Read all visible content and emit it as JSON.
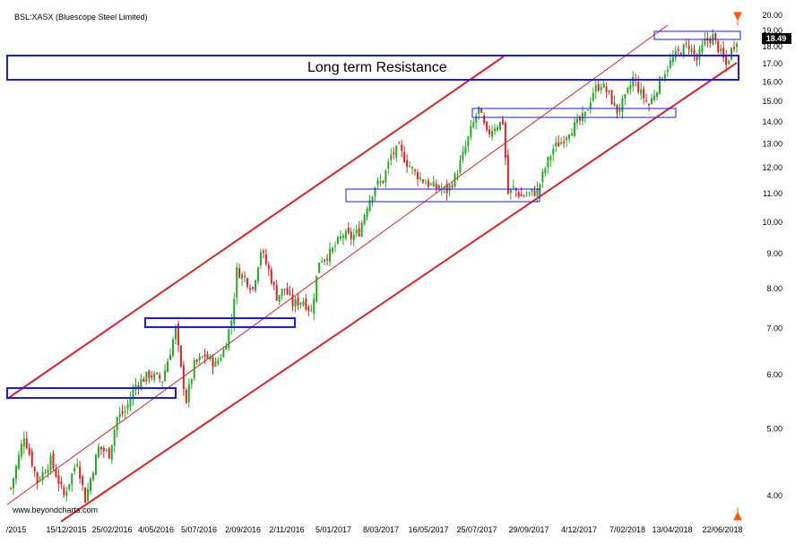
{
  "chart_data": {
    "type": "candlestick",
    "title": "BSL:XASX (Bluescope Steel Limited)",
    "y_scale": "log",
    "ylim": [
      3.7,
      20.0
    ],
    "y_ticks": [
      "20.00",
      "19.00",
      "18.00",
      "17.00",
      "16.00",
      "15.00",
      "14.00",
      "13.00",
      "12.00",
      "11.00",
      "10.00",
      "9.00",
      "8.00",
      "7.00",
      "6.00",
      "5.00",
      "4.00"
    ],
    "x_tick_labels": [
      "/2015",
      "15/12/2015",
      "25/02/2016",
      "4/05/2016",
      "5/07/2016",
      "2/09/2016",
      "2/11/2016",
      "5/01/2017",
      "8/03/2017",
      "16/05/2017",
      "25/07/2017",
      "29/09/2017",
      "4/12/2017",
      "7/02/2018",
      "13/04/2018",
      "22/06/2018"
    ],
    "last_price": "18.49",
    "annotation": "Long term Resistance",
    "watermark": "www.beyondcharts.com",
    "colors": {
      "up": "#22aa22",
      "down": "#dd2222",
      "channel": "#e02020",
      "box": "#1a1aee"
    },
    "price_path": [
      [
        0,
        4.1
      ],
      [
        5,
        4.9
      ],
      [
        10,
        4.2
      ],
      [
        15,
        4.5
      ],
      [
        20,
        4.0
      ],
      [
        25,
        4.5
      ],
      [
        28,
        3.95
      ],
      [
        33,
        4.7
      ],
      [
        37,
        4.6
      ],
      [
        40,
        5.2
      ],
      [
        43,
        5.3
      ],
      [
        47,
        5.8
      ],
      [
        52,
        6.0
      ],
      [
        57,
        5.9
      ],
      [
        60,
        6.5
      ],
      [
        62,
        7.0
      ],
      [
        64,
        6.1
      ],
      [
        66,
        5.5
      ],
      [
        69,
        6.2
      ],
      [
        73,
        6.4
      ],
      [
        77,
        6.2
      ],
      [
        80,
        6.5
      ],
      [
        83,
        7.2
      ],
      [
        85,
        8.5
      ],
      [
        88,
        8.3
      ],
      [
        91,
        8.0
      ],
      [
        94,
        9.1
      ],
      [
        97,
        8.5
      ],
      [
        100,
        7.8
      ],
      [
        103,
        8.0
      ],
      [
        106,
        7.6
      ],
      [
        110,
        7.7
      ],
      [
        113,
        7.4
      ],
      [
        116,
        8.8
      ],
      [
        120,
        9.0
      ],
      [
        125,
        9.6
      ],
      [
        128,
        9.5
      ],
      [
        131,
        9.7
      ],
      [
        134,
        10.6
      ],
      [
        137,
        11.3
      ],
      [
        140,
        11.5
      ],
      [
        143,
        12.5
      ],
      [
        146,
        12.8
      ],
      [
        149,
        12.2
      ],
      [
        152,
        11.8
      ],
      [
        155,
        11.5
      ],
      [
        158,
        11.3
      ],
      [
        161,
        11.2
      ],
      [
        164,
        11.1
      ],
      [
        167,
        11.6
      ],
      [
        170,
        12.5
      ],
      [
        173,
        13.6
      ],
      [
        176,
        14.6
      ],
      [
        179,
        13.4
      ],
      [
        182,
        13.8
      ],
      [
        185,
        14.0
      ],
      [
        187,
        11.0
      ],
      [
        189,
        11.2
      ],
      [
        192,
        10.9
      ],
      [
        195,
        11.0
      ],
      [
        198,
        11.1
      ],
      [
        201,
        12.0
      ],
      [
        204,
        12.8
      ],
      [
        207,
        13.1
      ],
      [
        210,
        13.6
      ],
      [
        213,
        13.9
      ],
      [
        216,
        14.3
      ],
      [
        219,
        15.5
      ],
      [
        222,
        15.9
      ],
      [
        225,
        15.3
      ],
      [
        228,
        14.5
      ],
      [
        231,
        15.1
      ],
      [
        234,
        16.2
      ],
      [
        237,
        15.4
      ],
      [
        240,
        14.8
      ],
      [
        243,
        15.7
      ],
      [
        246,
        16.6
      ],
      [
        249,
        17.3
      ],
      [
        252,
        17.8
      ],
      [
        255,
        18.1
      ],
      [
        258,
        17.2
      ],
      [
        261,
        18.3
      ],
      [
        264,
        18.6
      ],
      [
        267,
        17.6
      ],
      [
        269,
        16.9
      ],
      [
        271,
        17.8
      ],
      [
        273,
        18.49
      ]
    ]
  }
}
